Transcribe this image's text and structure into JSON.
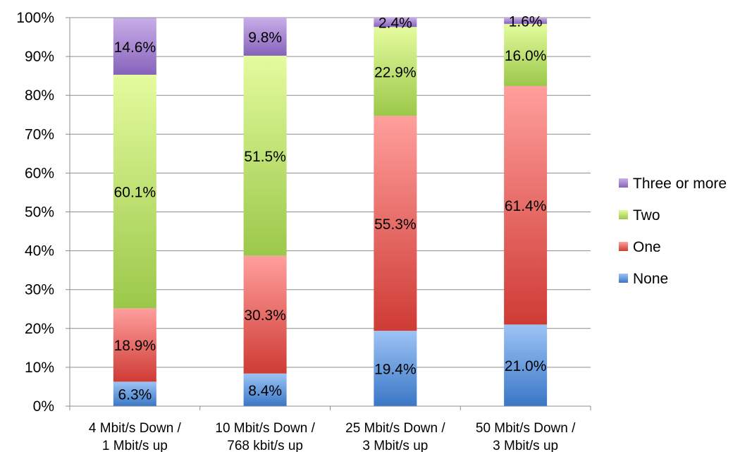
{
  "chart_data": {
    "type": "bar",
    "stacked": true,
    "percent": true,
    "categories": [
      [
        "4 Mbit/s Down /",
        "1 Mbit/s up"
      ],
      [
        "10 Mbit/s Down /",
        "768 kbit/s up"
      ],
      [
        "25 Mbit/s Down /",
        "3 Mbit/s up"
      ],
      [
        "50 Mbit/s Down /",
        "3 Mbit/s up"
      ]
    ],
    "series": [
      {
        "name": "None",
        "values": [
          6.3,
          8.4,
          19.4,
          21.0
        ],
        "labels": [
          "6.3%",
          "8.4%",
          "19.4%",
          "21.0%"
        ],
        "color_light": "#9dc3f5",
        "color_dark": "#3a77c6"
      },
      {
        "name": "One",
        "values": [
          18.9,
          30.3,
          55.3,
          61.4
        ],
        "labels": [
          "18.9%",
          "30.3%",
          "55.3%",
          "61.4%"
        ],
        "color_light": "#ff9f9c",
        "color_dark": "#cf3b35"
      },
      {
        "name": "Two",
        "values": [
          60.1,
          51.5,
          22.9,
          16.0
        ],
        "labels": [
          "60.1%",
          "51.5%",
          "22.9%",
          "16.0%"
        ],
        "color_light": "#e4fb9e",
        "color_dark": "#9bc84a"
      },
      {
        "name": "Three or more",
        "values": [
          14.6,
          9.8,
          2.4,
          1.6
        ],
        "labels": [
          "14.6%",
          "9.8%",
          "2.4%",
          "1.6%"
        ],
        "color_light": "#c9aee8",
        "color_dark": "#8663bb"
      }
    ],
    "ylim": [
      0,
      100
    ],
    "yticks": [
      "0%",
      "10%",
      "20%",
      "30%",
      "40%",
      "50%",
      "60%",
      "70%",
      "80%",
      "90%",
      "100%"
    ],
    "grid": true,
    "legend": {
      "position": "right",
      "order": [
        "Three or more",
        "Two",
        "One",
        "None"
      ]
    },
    "title": "",
    "xlabel": "",
    "ylabel": ""
  }
}
